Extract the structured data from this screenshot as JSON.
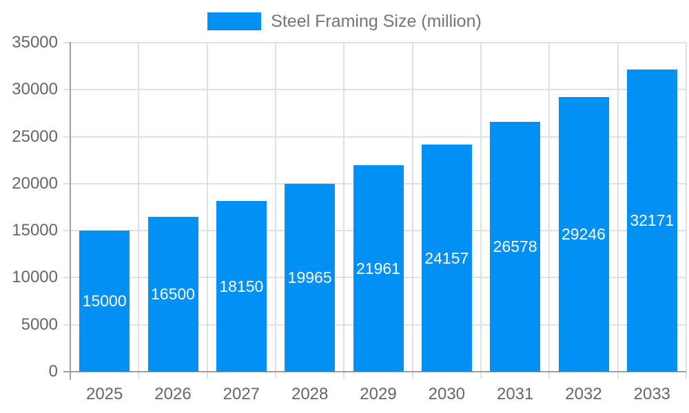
{
  "page": {
    "background_color": "#ffffff"
  },
  "legend": {
    "position": "top-center"
  },
  "chart_data": {
    "type": "bar",
    "title": "Steel Framing Size (million)",
    "categories": [
      "2025",
      "2026",
      "2027",
      "2028",
      "2029",
      "2030",
      "2031",
      "2032",
      "2033"
    ],
    "series": [
      {
        "name": "Steel Framing Size (million)",
        "color": "#0290f5",
        "values": [
          15000,
          16500,
          18150,
          19965,
          21961,
          24157,
          26578,
          29246,
          32171
        ]
      }
    ],
    "xlabel": "",
    "ylabel": "",
    "ylim": [
      0,
      35000
    ],
    "yticks": [
      0,
      5000,
      10000,
      15000,
      20000,
      25000,
      30000,
      35000
    ],
    "grid": true,
    "legend_position": "top",
    "value_label_style": "inside-center-white",
    "axis_color": "#9e9e9e",
    "grid_color": "#e0e0e0",
    "tick_label_color": "#666666",
    "legend_text_color": "#757575"
  }
}
